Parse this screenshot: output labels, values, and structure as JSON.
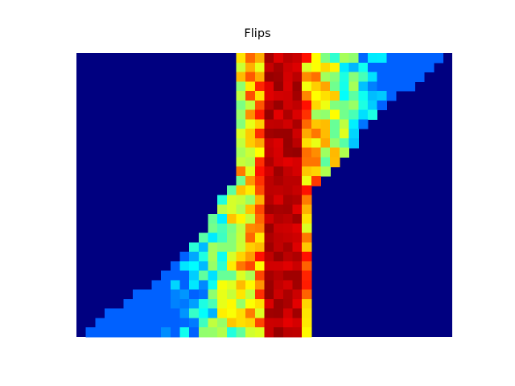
{
  "chart_data": {
    "type": "heatmap",
    "title": "Flips",
    "xlabel": "",
    "ylabel": "",
    "axes_visible": false,
    "colormap": "jet",
    "vmin": 0,
    "vmax": 1,
    "n_cols": 40,
    "n_rows": 30,
    "grid": false,
    "row_bounds": [
      [
        17,
        38
      ],
      [
        17,
        37
      ],
      [
        17,
        36
      ],
      [
        17,
        35
      ],
      [
        17,
        33
      ],
      [
        17,
        32
      ],
      [
        17,
        31
      ],
      [
        17,
        30
      ],
      [
        17,
        29
      ],
      [
        17,
        29
      ],
      [
        17,
        28
      ],
      [
        17,
        27
      ],
      [
        17,
        26
      ],
      [
        17,
        25
      ],
      [
        16,
        24
      ],
      [
        15,
        24
      ],
      [
        15,
        24
      ],
      [
        14,
        24
      ],
      [
        14,
        24
      ],
      [
        13,
        24
      ],
      [
        12,
        24
      ],
      [
        11,
        24
      ],
      [
        10,
        24
      ],
      [
        9,
        24
      ],
      [
        8,
        24
      ],
      [
        6,
        24
      ],
      [
        5,
        24
      ],
      [
        3,
        24
      ],
      [
        2,
        24
      ],
      [
        1,
        24
      ]
    ],
    "band": {
      "center_col": 21.5,
      "half_width": 1.8
    }
  }
}
